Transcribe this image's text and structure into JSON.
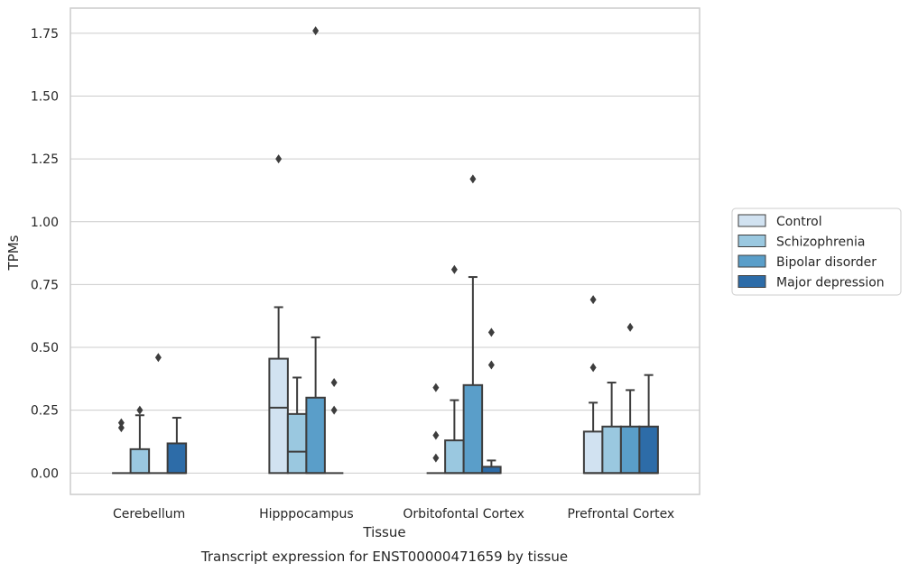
{
  "chart_data": {
    "type": "box",
    "title": "Transcript expression for ENST00000471659 by tissue",
    "xlabel": "Tissue",
    "ylabel": "TPMs",
    "ylim": [
      -0.085,
      1.85
    ],
    "yticks": [
      "0.00",
      "0.25",
      "0.50",
      "0.75",
      "1.00",
      "1.25",
      "1.50",
      "1.75"
    ],
    "categories": [
      "Cerebellum",
      "Hipppocampus",
      "Orbitofontal Cortex",
      "Prefrontal Cortex"
    ],
    "grid": true,
    "legend_position": "right",
    "series": [
      {
        "name": "Control",
        "color": "#d1e2f1",
        "boxes": [
          {
            "q1": 0,
            "median": 0,
            "q3": 0,
            "whisker_low": 0,
            "whisker_high": 0,
            "outliers": [
              0.18,
              0.2
            ]
          },
          {
            "q1": 0,
            "median": 0.26,
            "q3": 0.455,
            "whisker_low": 0,
            "whisker_high": 0.66,
            "outliers": [
              1.25
            ]
          },
          {
            "q1": 0,
            "median": 0,
            "q3": 0,
            "whisker_low": 0,
            "whisker_high": 0,
            "outliers": [
              0.06,
              0.15,
              0.34
            ]
          },
          {
            "q1": 0,
            "median": 0,
            "q3": 0.165,
            "whisker_low": 0,
            "whisker_high": 0.28,
            "outliers": [
              0.42,
              0.69
            ]
          }
        ]
      },
      {
        "name": "Schizophrenia",
        "color": "#9ac8e0",
        "boxes": [
          {
            "q1": 0,
            "median": 0,
            "q3": 0.095,
            "whisker_low": 0,
            "whisker_high": 0.23,
            "outliers": [
              0.25
            ]
          },
          {
            "q1": 0,
            "median": 0.085,
            "q3": 0.235,
            "whisker_low": 0,
            "whisker_high": 0.38,
            "outliers": []
          },
          {
            "q1": 0,
            "median": 0,
            "q3": 0.13,
            "whisker_low": 0,
            "whisker_high": 0.29,
            "outliers": [
              0.81
            ]
          },
          {
            "q1": 0,
            "median": 0,
            "q3": 0.185,
            "whisker_low": 0,
            "whisker_high": 0.36,
            "outliers": []
          }
        ]
      },
      {
        "name": "Bipolar disorder",
        "color": "#5a9ec9",
        "boxes": [
          {
            "q1": 0,
            "median": 0,
            "q3": 0,
            "whisker_low": 0,
            "whisker_high": 0,
            "outliers": [
              0.46
            ]
          },
          {
            "q1": 0,
            "median": 0,
            "q3": 0.3,
            "whisker_low": 0,
            "whisker_high": 0.54,
            "outliers": [
              1.76
            ]
          },
          {
            "q1": 0,
            "median": 0,
            "q3": 0.35,
            "whisker_low": 0,
            "whisker_high": 0.78,
            "outliers": [
              1.17
            ]
          },
          {
            "q1": 0,
            "median": 0,
            "q3": 0.185,
            "whisker_low": 0,
            "whisker_high": 0.33,
            "outliers": [
              0.58
            ]
          }
        ]
      },
      {
        "name": "Major depression",
        "color": "#2d6ca8",
        "boxes": [
          {
            "q1": 0,
            "median": 0,
            "q3": 0.118,
            "whisker_low": 0,
            "whisker_high": 0.22,
            "outliers": []
          },
          {
            "q1": 0,
            "median": 0,
            "q3": 0,
            "whisker_low": 0,
            "whisker_high": 0,
            "outliers": [
              0.25,
              0.36
            ]
          },
          {
            "q1": 0,
            "median": 0,
            "q3": 0.025,
            "whisker_low": 0,
            "whisker_high": 0.05,
            "outliers": [
              0.43,
              0.56
            ]
          },
          {
            "q1": 0,
            "median": 0,
            "q3": 0.185,
            "whisker_low": 0,
            "whisker_high": 0.39,
            "outliers": []
          }
        ]
      }
    ]
  }
}
